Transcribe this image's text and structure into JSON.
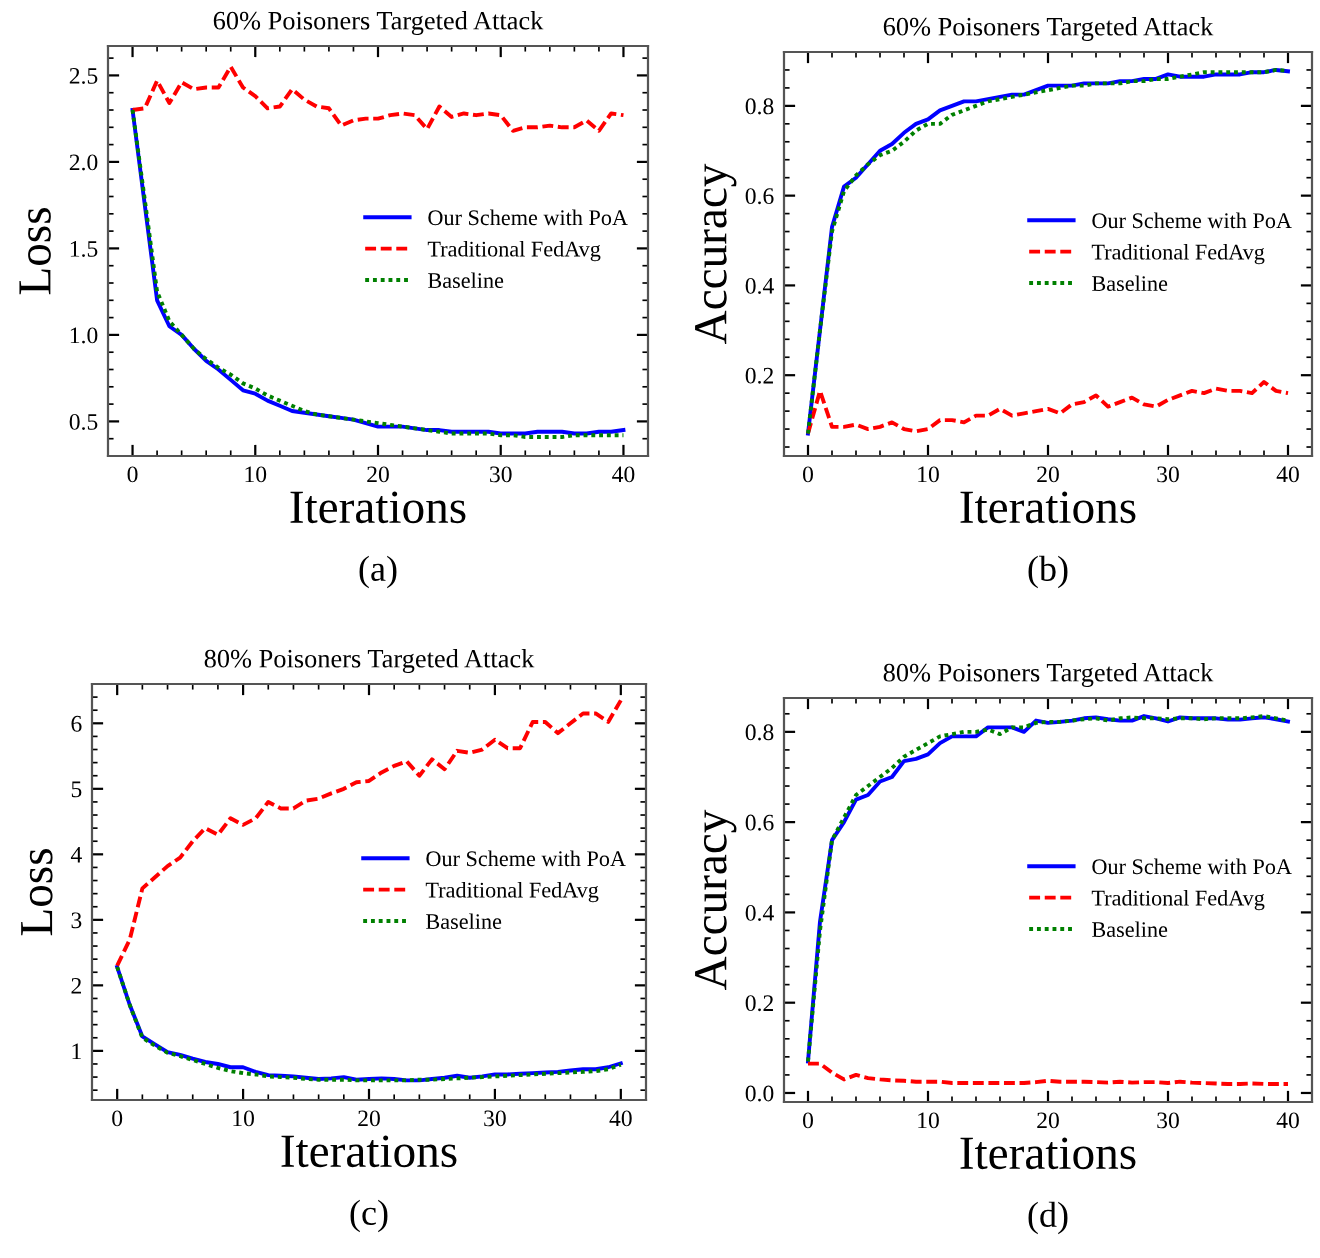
{
  "chart_data": [
    {
      "type": "line",
      "title": "60% Poisoners Targeted Attack",
      "xlabel": "Iterations",
      "ylabel": "Loss",
      "annotations": [
        "(a)"
      ],
      "legend": "right",
      "x": [
        0,
        1,
        2,
        3,
        4,
        5,
        6,
        7,
        8,
        9,
        10,
        11,
        12,
        13,
        14,
        15,
        16,
        17,
        18,
        19,
        20,
        21,
        22,
        23,
        24,
        25,
        26,
        27,
        28,
        29,
        30,
        31,
        32,
        33,
        34,
        35,
        36,
        37,
        38,
        39,
        40
      ],
      "xlim": [
        -2,
        42
      ],
      "ylim": [
        0.3,
        2.67
      ],
      "xticks": [
        0,
        10,
        20,
        30,
        40
      ],
      "yticks": [
        {
          "value": 0.5,
          "label": "0.5"
        },
        {
          "value": 1.0,
          "label": "1.0"
        },
        {
          "value": 1.5,
          "label": "1.5"
        },
        {
          "value": 2.0,
          "label": "2.0"
        },
        {
          "value": 2.5,
          "label": "2.5"
        }
      ],
      "series": [
        {
          "name": "Our Scheme with PoA",
          "color": "#0000ff",
          "line_style": "solid",
          "values": [
            2.3,
            1.75,
            1.2,
            1.05,
            1.0,
            0.92,
            0.85,
            0.8,
            0.74,
            0.68,
            0.66,
            0.62,
            0.59,
            0.56,
            0.55,
            0.54,
            0.53,
            0.52,
            0.51,
            0.49,
            0.47,
            0.47,
            0.47,
            0.46,
            0.45,
            0.45,
            0.44,
            0.44,
            0.44,
            0.44,
            0.43,
            0.43,
            0.43,
            0.44,
            0.44,
            0.44,
            0.43,
            0.43,
            0.44,
            0.44,
            0.45
          ]
        },
        {
          "name": "Traditional FedAvg",
          "color": "#ff0000",
          "line_style": "dashed",
          "values": [
            2.3,
            2.31,
            2.47,
            2.34,
            2.46,
            2.42,
            2.43,
            2.43,
            2.55,
            2.43,
            2.38,
            2.31,
            2.32,
            2.42,
            2.36,
            2.32,
            2.31,
            2.21,
            2.24,
            2.25,
            2.25,
            2.27,
            2.28,
            2.27,
            2.19,
            2.32,
            2.26,
            2.28,
            2.27,
            2.28,
            2.27,
            2.18,
            2.2,
            2.2,
            2.21,
            2.2,
            2.2,
            2.24,
            2.18,
            2.28,
            2.27
          ]
        },
        {
          "name": "Baseline",
          "color": "#008000",
          "line_style": "dotted",
          "values": [
            2.3,
            1.78,
            1.25,
            1.08,
            1.0,
            0.92,
            0.86,
            0.81,
            0.77,
            0.72,
            0.69,
            0.65,
            0.62,
            0.59,
            0.56,
            0.54,
            0.53,
            0.52,
            0.51,
            0.5,
            0.49,
            0.48,
            0.47,
            0.46,
            0.45,
            0.44,
            0.43,
            0.43,
            0.43,
            0.43,
            0.42,
            0.42,
            0.41,
            0.41,
            0.41,
            0.41,
            0.42,
            0.42,
            0.42,
            0.42,
            0.42
          ]
        }
      ]
    },
    {
      "type": "line",
      "title": "60% Poisoners Targeted Attack",
      "xlabel": "Iterations",
      "ylabel": "Accuracy",
      "annotations": [
        "(b)"
      ],
      "legend": "right",
      "x": [
        0,
        1,
        2,
        3,
        4,
        5,
        6,
        7,
        8,
        9,
        10,
        11,
        12,
        13,
        14,
        15,
        16,
        17,
        18,
        19,
        20,
        21,
        22,
        23,
        24,
        25,
        26,
        27,
        28,
        29,
        30,
        31,
        32,
        33,
        34,
        35,
        36,
        37,
        38,
        39,
        40
      ],
      "xlim": [
        -2,
        42
      ],
      "ylim": [
        0.02,
        0.92
      ],
      "xticks": [
        0,
        10,
        20,
        30,
        40
      ],
      "yticks": [
        0.2,
        0.4,
        0.6,
        0.8
      ],
      "series": [
        {
          "name": "Our Scheme with PoA",
          "color": "#0000ff",
          "line_style": "solid",
          "values": [
            0.07,
            0.3,
            0.53,
            0.62,
            0.64,
            0.67,
            0.7,
            0.715,
            0.74,
            0.76,
            0.77,
            0.79,
            0.8,
            0.81,
            0.81,
            0.815,
            0.82,
            0.825,
            0.825,
            0.835,
            0.845,
            0.845,
            0.845,
            0.85,
            0.85,
            0.85,
            0.855,
            0.855,
            0.86,
            0.86,
            0.87,
            0.865,
            0.865,
            0.865,
            0.87,
            0.87,
            0.87,
            0.875,
            0.875,
            0.88,
            0.877
          ]
        },
        {
          "name": "Traditional FedAvg",
          "color": "#ff0000",
          "line_style": "dashed",
          "values": [
            0.07,
            0.165,
            0.085,
            0.085,
            0.09,
            0.08,
            0.085,
            0.095,
            0.08,
            0.075,
            0.08,
            0.1,
            0.1,
            0.095,
            0.11,
            0.11,
            0.125,
            0.11,
            0.115,
            0.12,
            0.125,
            0.115,
            0.135,
            0.14,
            0.155,
            0.13,
            0.14,
            0.15,
            0.135,
            0.13,
            0.145,
            0.155,
            0.165,
            0.16,
            0.17,
            0.165,
            0.165,
            0.16,
            0.185,
            0.165,
            0.16
          ]
        },
        {
          "name": "Baseline",
          "color": "#008000",
          "line_style": "dotted",
          "values": [
            0.07,
            0.3,
            0.52,
            0.61,
            0.645,
            0.67,
            0.69,
            0.7,
            0.72,
            0.745,
            0.76,
            0.76,
            0.78,
            0.79,
            0.8,
            0.81,
            0.815,
            0.82,
            0.825,
            0.83,
            0.835,
            0.84,
            0.845,
            0.845,
            0.85,
            0.85,
            0.85,
            0.855,
            0.855,
            0.86,
            0.86,
            0.865,
            0.87,
            0.875,
            0.875,
            0.875,
            0.875,
            0.875,
            0.875,
            0.88,
            0.878
          ]
        }
      ]
    },
    {
      "type": "line",
      "title": "80% Poisoners Targeted Attack",
      "xlabel": "Iterations",
      "ylabel": "Loss",
      "annotations": [
        "(c)"
      ],
      "legend": "right",
      "x": [
        0,
        1,
        2,
        3,
        4,
        5,
        6,
        7,
        8,
        9,
        10,
        11,
        12,
        13,
        14,
        15,
        16,
        17,
        18,
        19,
        20,
        21,
        22,
        23,
        24,
        25,
        26,
        27,
        28,
        29,
        30,
        31,
        32,
        33,
        34,
        35,
        36,
        37,
        38,
        39,
        40
      ],
      "xlim": [
        -2,
        42
      ],
      "ylim": [
        0.25,
        6.6
      ],
      "xticks": [
        0,
        10,
        20,
        30,
        40
      ],
      "yticks": [
        1,
        2,
        3,
        4,
        5,
        6
      ],
      "series": [
        {
          "name": "Our Scheme with PoA",
          "color": "#0000ff",
          "line_style": "solid",
          "values": [
            2.28,
            1.7,
            1.22,
            1.1,
            0.98,
            0.94,
            0.88,
            0.83,
            0.8,
            0.75,
            0.75,
            0.68,
            0.63,
            0.62,
            0.61,
            0.59,
            0.57,
            0.58,
            0.6,
            0.56,
            0.57,
            0.58,
            0.57,
            0.55,
            0.55,
            0.57,
            0.59,
            0.62,
            0.59,
            0.61,
            0.64,
            0.64,
            0.65,
            0.66,
            0.67,
            0.68,
            0.7,
            0.72,
            0.72,
            0.75,
            0.81
          ]
        },
        {
          "name": "Traditional FedAvg",
          "color": "#ff0000",
          "line_style": "dashed",
          "values": [
            2.3,
            2.7,
            3.48,
            3.65,
            3.82,
            3.95,
            4.2,
            4.4,
            4.3,
            4.55,
            4.45,
            4.55,
            4.8,
            4.7,
            4.7,
            4.82,
            4.85,
            4.93,
            5.0,
            5.1,
            5.12,
            5.25,
            5.35,
            5.42,
            5.2,
            5.45,
            5.3,
            5.58,
            5.55,
            5.6,
            5.75,
            5.62,
            5.62,
            6.02,
            6.02,
            5.85,
            6.0,
            6.15,
            6.15,
            6.02,
            6.35
          ]
        },
        {
          "name": "Baseline",
          "color": "#008000",
          "line_style": "dotted",
          "values": [
            2.28,
            1.7,
            1.2,
            1.08,
            0.97,
            0.92,
            0.86,
            0.8,
            0.74,
            0.69,
            0.66,
            0.64,
            0.61,
            0.6,
            0.59,
            0.57,
            0.56,
            0.56,
            0.56,
            0.55,
            0.55,
            0.55,
            0.55,
            0.55,
            0.56,
            0.56,
            0.57,
            0.58,
            0.59,
            0.6,
            0.61,
            0.62,
            0.63,
            0.64,
            0.65,
            0.66,
            0.67,
            0.68,
            0.69,
            0.72,
            0.79
          ]
        }
      ]
    },
    {
      "type": "line",
      "title": "80% Poisoners Targeted Attack",
      "xlabel": "Iterations",
      "ylabel": "Accuracy",
      "annotations": [
        "(d)"
      ],
      "legend": "right",
      "x": [
        0,
        1,
        2,
        3,
        4,
        5,
        6,
        7,
        8,
        9,
        10,
        11,
        12,
        13,
        14,
        15,
        16,
        17,
        18,
        19,
        20,
        21,
        22,
        23,
        24,
        25,
        26,
        27,
        28,
        29,
        30,
        31,
        32,
        33,
        34,
        35,
        36,
        37,
        38,
        39,
        40
      ],
      "xlim": [
        -2,
        42
      ],
      "ylim": [
        -0.02,
        0.875
      ],
      "xticks": [
        0,
        10,
        20,
        30,
        40
      ],
      "yticks": [
        {
          "value": 0.0,
          "label": "0.0"
        },
        0.2,
        0.4,
        0.6,
        0.8
      ],
      "series": [
        {
          "name": "Our Scheme with PoA",
          "color": "#0000ff",
          "line_style": "solid",
          "values": [
            0.07,
            0.38,
            0.56,
            0.6,
            0.65,
            0.66,
            0.69,
            0.7,
            0.735,
            0.74,
            0.75,
            0.775,
            0.79,
            0.79,
            0.79,
            0.81,
            0.81,
            0.81,
            0.8,
            0.825,
            0.82,
            0.822,
            0.825,
            0.83,
            0.832,
            0.828,
            0.825,
            0.825,
            0.835,
            0.83,
            0.823,
            0.832,
            0.83,
            0.83,
            0.83,
            0.827,
            0.827,
            0.83,
            0.832,
            0.828,
            0.823
          ]
        },
        {
          "name": "Traditional FedAvg",
          "color": "#ff0000",
          "line_style": "dashed",
          "values": [
            0.065,
            0.065,
            0.045,
            0.03,
            0.04,
            0.033,
            0.03,
            0.028,
            0.027,
            0.025,
            0.025,
            0.025,
            0.022,
            0.022,
            0.022,
            0.022,
            0.022,
            0.022,
            0.022,
            0.024,
            0.027,
            0.025,
            0.025,
            0.025,
            0.024,
            0.023,
            0.025,
            0.023,
            0.024,
            0.024,
            0.022,
            0.025,
            0.023,
            0.022,
            0.021,
            0.02,
            0.02,
            0.021,
            0.02,
            0.02,
            0.02
          ]
        },
        {
          "name": "Baseline",
          "color": "#008000",
          "line_style": "dotted",
          "values": [
            0.07,
            0.36,
            0.56,
            0.61,
            0.66,
            0.68,
            0.7,
            0.72,
            0.745,
            0.76,
            0.775,
            0.79,
            0.795,
            0.8,
            0.8,
            0.805,
            0.795,
            0.81,
            0.81,
            0.82,
            0.822,
            0.822,
            0.825,
            0.828,
            0.83,
            0.825,
            0.83,
            0.832,
            0.83,
            0.83,
            0.828,
            0.83,
            0.83,
            0.828,
            0.83,
            0.83,
            0.83,
            0.832,
            0.835,
            0.83,
            0.825
          ]
        }
      ]
    }
  ]
}
